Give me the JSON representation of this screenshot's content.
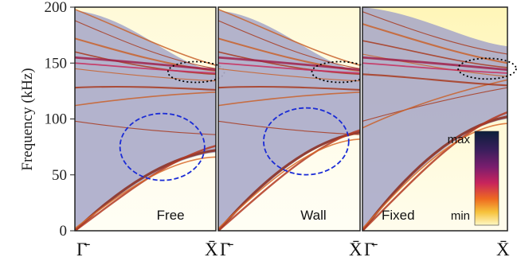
{
  "chart_data": {
    "type": "heatmap",
    "ylabel": "Frequency (kHz)",
    "ylim": [
      0,
      200
    ],
    "yticks": [
      "0",
      "50",
      "100",
      "150",
      "200"
    ],
    "panels": [
      {
        "label": "Free",
        "x_ticks": [
          "Γ̄",
          "X̄"
        ],
        "band_regions": {
          "bottom_at_gamma": 0,
          "bottom_at_X": 70,
          "top_at_gamma": 197,
          "top_at_X": 143
        },
        "highlights": [
          {
            "style": "dotted",
            "color": "black",
            "at": "near X̄",
            "frequency_khz": 142
          },
          {
            "style": "dashed",
            "color": "blue",
            "at": "near X̄",
            "frequency_khz": 75
          }
        ]
      },
      {
        "label": "Wall",
        "x_ticks": [
          "Γ̄",
          "X̄"
        ],
        "band_regions": {
          "bottom_at_gamma": 0,
          "bottom_at_X": 87,
          "top_at_gamma": 197,
          "top_at_X": 143
        },
        "highlights": [
          {
            "style": "dotted",
            "color": "black",
            "at": "near X̄",
            "frequency_khz": 142
          },
          {
            "style": "dashed",
            "color": "blue",
            "at": "near X̄",
            "frequency_khz": 80
          }
        ]
      },
      {
        "label": "Fixed",
        "x_ticks": [
          "Γ̄",
          "X̄"
        ],
        "band_regions": {
          "bottom_at_gamma": 0,
          "bottom_at_X": 100,
          "top_at_gamma": 200,
          "top_at_X": 165
        },
        "highlights": [
          {
            "style": "dotted",
            "color": "black",
            "at": "near X̄",
            "frequency_khz": 145
          }
        ]
      }
    ],
    "colorbar": {
      "max_label": "max",
      "min_label": "min",
      "colors": [
        "#0b1f3a",
        "#3a1e5c",
        "#7a1d6e",
        "#c8245c",
        "#ee6a20",
        "#f6c23b",
        "#fff8c4"
      ]
    },
    "colors": {
      "band_fill": "#a6a6c8",
      "mode_line": "#c0552b",
      "dashed_ellipse": "#1a2bd6",
      "dotted_ellipse": "#000000"
    }
  }
}
